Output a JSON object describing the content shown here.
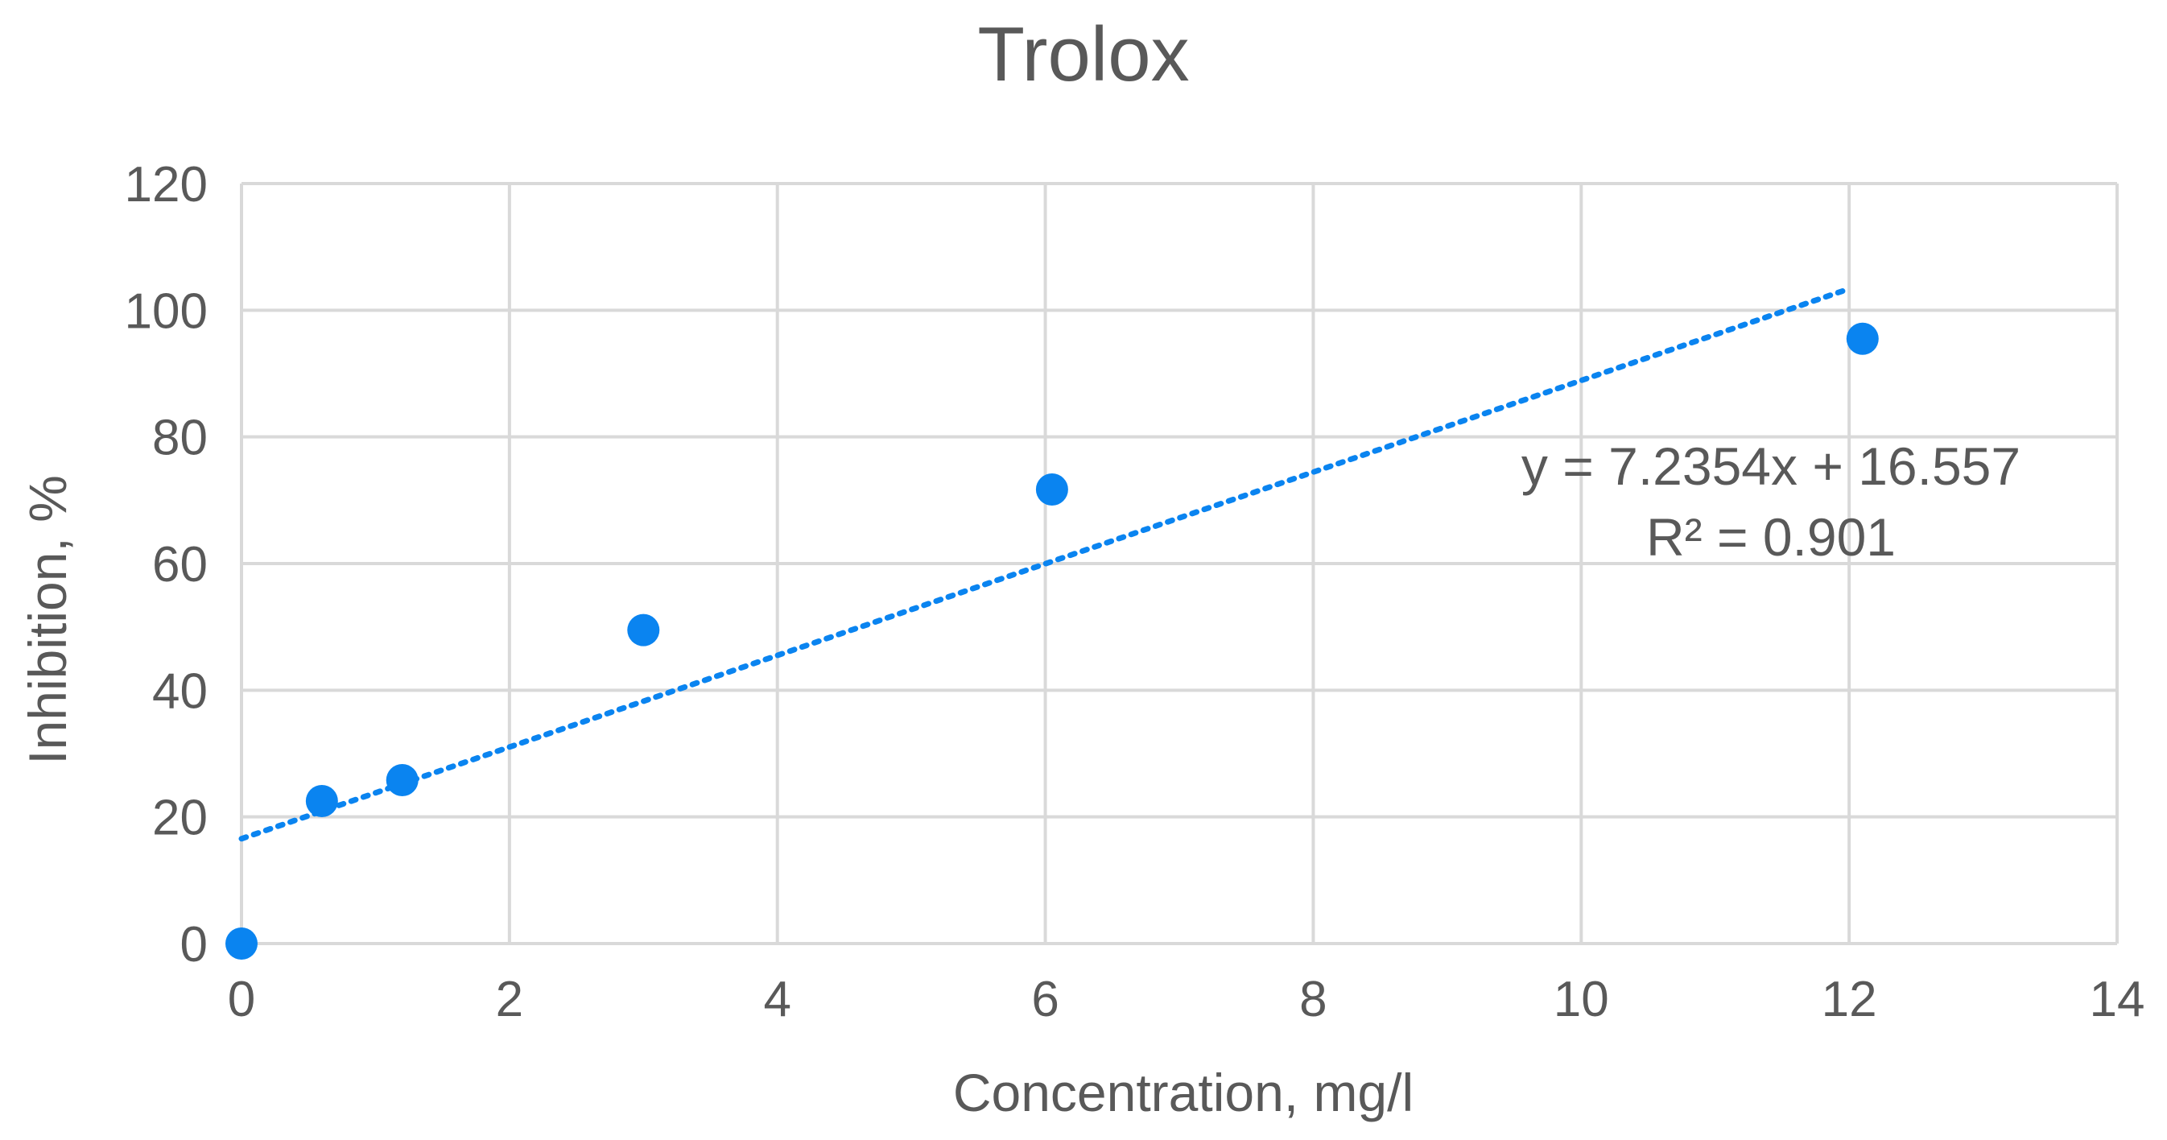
{
  "chart_data": {
    "type": "scatter",
    "title": "Trolox",
    "xlabel": "Concentration, mg/l",
    "ylabel": "Inhibition, %",
    "xlim": [
      0,
      14
    ],
    "ylim": [
      0,
      120
    ],
    "xticks": [
      0,
      2,
      4,
      6,
      8,
      10,
      12,
      14
    ],
    "yticks": [
      0,
      20,
      40,
      60,
      80,
      100,
      120
    ],
    "grid": true,
    "legend": "none",
    "series": [
      {
        "points": [
          {
            "x": 0,
            "y": 0
          },
          {
            "x": 0.6,
            "y": 22.5
          },
          {
            "x": 1.2,
            "y": 25.8
          },
          {
            "x": 3.0,
            "y": 49.5
          },
          {
            "x": 6.05,
            "y": 71.7
          },
          {
            "x": 12.1,
            "y": 95.5
          }
        ],
        "color": "#0a84f0"
      }
    ],
    "trendline": {
      "type": "linear",
      "style": "dotted",
      "slope": 7.2354,
      "intercept": 16.557,
      "x_range": [
        0,
        12
      ],
      "color": "#0a84f0"
    },
    "annotations": {
      "equation": "y = 7.2354x + 16.557",
      "r_squared": "R² = 0.901"
    }
  }
}
